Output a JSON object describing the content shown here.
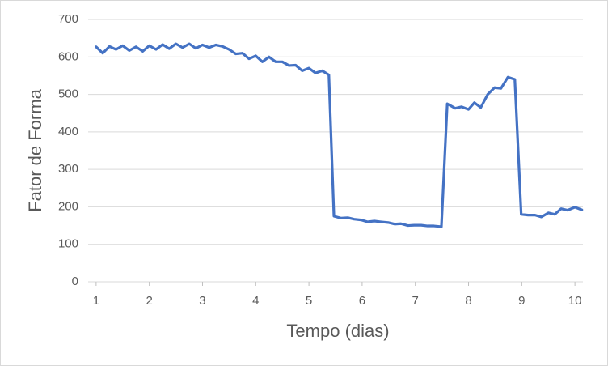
{
  "chart_data": {
    "type": "line",
    "x_label": "Tempo (dias)",
    "y_label": "Fator de Forma",
    "series": [
      {
        "color": "#4472c4",
        "x": [
          1,
          1.125,
          1.25,
          1.375,
          1.5,
          1.625,
          1.75,
          1.875,
          2,
          2.125,
          2.25,
          2.375,
          2.5,
          2.625,
          2.75,
          2.875,
          3,
          3.125,
          3.25,
          3.375,
          3.5,
          3.625,
          3.75,
          3.875,
          4,
          4.125,
          4.25,
          4.375,
          4.5,
          4.625,
          4.75,
          4.875,
          5,
          5.125,
          5.25,
          5.375,
          5.47,
          5.6,
          5.73,
          5.85,
          5.98,
          6.1,
          6.23,
          6.35,
          6.49,
          6.61,
          6.73,
          6.86,
          6.98,
          7.11,
          7.23,
          7.35,
          7.49,
          7.6,
          7.75,
          7.87,
          8,
          8.11,
          8.23,
          8.36,
          8.49,
          8.61,
          8.74,
          8.87,
          8.99,
          9.12,
          9.25,
          9.37,
          9.5,
          9.62,
          9.74,
          9.86,
          10,
          10.13
        ],
        "values": [
          627,
          610,
          628,
          620,
          630,
          617,
          627,
          615,
          630,
          620,
          633,
          622,
          635,
          625,
          635,
          623,
          632,
          625,
          632,
          628,
          620,
          608,
          610,
          595,
          603,
          587,
          600,
          587,
          587,
          577,
          578,
          563,
          570,
          557,
          563,
          552,
          175,
          170,
          171,
          167,
          165,
          160,
          162,
          160,
          158,
          154,
          155,
          150,
          151,
          151,
          149,
          149,
          147,
          475,
          463,
          467,
          460,
          478,
          465,
          500,
          518,
          516,
          546,
          540,
          180,
          178,
          178,
          173,
          184,
          180,
          195,
          191,
          199,
          192
        ]
      }
    ],
    "xlim": [
      0.85,
      10.15
    ],
    "xticks": [
      1,
      2,
      3,
      4,
      5,
      6,
      7,
      8,
      9,
      10
    ],
    "ylim": [
      0,
      700
    ],
    "yticks": [
      0,
      100,
      200,
      300,
      400,
      500,
      600,
      700
    ],
    "grid": true
  }
}
